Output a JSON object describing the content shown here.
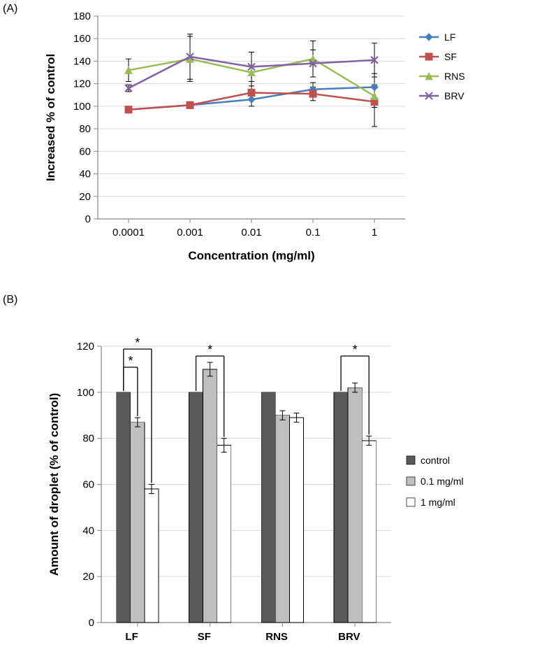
{
  "panelA": {
    "label": "(A)",
    "chart": {
      "type": "line",
      "x_categories": [
        "0.0001",
        "0.001",
        "0.01",
        "0.1",
        "1"
      ],
      "y_label": "Increased  % of control",
      "x_label": "Concentration (mg/ml)",
      "ylim": [
        0,
        180
      ],
      "ytick_step": 20,
      "background_color": "#ffffff",
      "grid_color": "#d9d9d9",
      "axis_color": "#878787",
      "label_color": "#000000",
      "title_fontsize": 17,
      "tick_fontsize": 15,
      "line_width": 2.5,
      "marker_size": 10,
      "error_bar_color": "#000000",
      "series": [
        {
          "name": "LF",
          "color": "#4a7ebb",
          "marker": "diamond",
          "values": [
            97,
            101,
            106,
            115,
            117
          ],
          "errors": [
            2,
            3,
            6,
            6,
            12
          ]
        },
        {
          "name": "SF",
          "color": "#c0504d",
          "marker": "square",
          "values": [
            97,
            101,
            112,
            111,
            104
          ],
          "errors": [
            3,
            3,
            6,
            6,
            22
          ]
        },
        {
          "name": "RNS",
          "color": "#9bbb59",
          "marker": "triangle",
          "values": [
            132,
            142,
            130,
            142,
            109
          ],
          "errors": [
            10,
            20,
            18,
            16,
            10
          ]
        },
        {
          "name": "BRV",
          "color": "#8064a2",
          "marker": "x",
          "values": [
            116,
            144,
            135,
            138,
            141
          ],
          "errors": [
            3,
            20,
            13,
            12,
            15
          ]
        }
      ]
    },
    "legend": {
      "position": "right",
      "items": [
        "LF",
        "SF",
        "RNS",
        "BRV"
      ]
    }
  },
  "panelB": {
    "label": "(B)",
    "chart": {
      "type": "bar",
      "x_categories": [
        "LF",
        "SF",
        "RNS",
        "BRV"
      ],
      "y_label": "Amount of droplet (% of control)",
      "ylim": [
        0,
        120
      ],
      "ytick_step": 20,
      "background_color": "#ffffff",
      "grid_color": "#d9d9d9",
      "axis_color": "#878787",
      "label_color": "#000000",
      "title_fontsize": 17,
      "tick_fontsize": 15,
      "bar_group_width": 0.58,
      "bar_outline": "#000000",
      "error_bar_color": "#000000",
      "series": [
        {
          "name": "control",
          "fill": "#595959",
          "values": [
            100,
            100,
            100,
            100
          ],
          "errors": [
            0,
            0,
            0,
            0
          ]
        },
        {
          "name": "0.1 mg/ml",
          "fill": "#bfbfbf",
          "values": [
            87,
            110,
            90,
            102
          ],
          "errors": [
            2,
            3,
            2,
            2
          ]
        },
        {
          "name": "1 mg/ml",
          "fill": "#ffffff",
          "values": [
            58,
            77,
            89,
            79
          ],
          "errors": [
            2,
            3,
            2,
            2
          ]
        }
      ],
      "significance": [
        {
          "group": "LF",
          "pairs": [
            [
              0,
              1
            ],
            [
              0,
              2
            ]
          ],
          "label": "*"
        },
        {
          "group": "SF",
          "pairs": [
            [
              0,
              2
            ]
          ],
          "label": "*"
        },
        {
          "group": "BRV",
          "pairs": [
            [
              0,
              2
            ]
          ],
          "label": "*"
        }
      ]
    },
    "legend": {
      "position": "right",
      "items": [
        "control",
        "0.1 mg/ml",
        "1 mg/ml"
      ]
    }
  }
}
